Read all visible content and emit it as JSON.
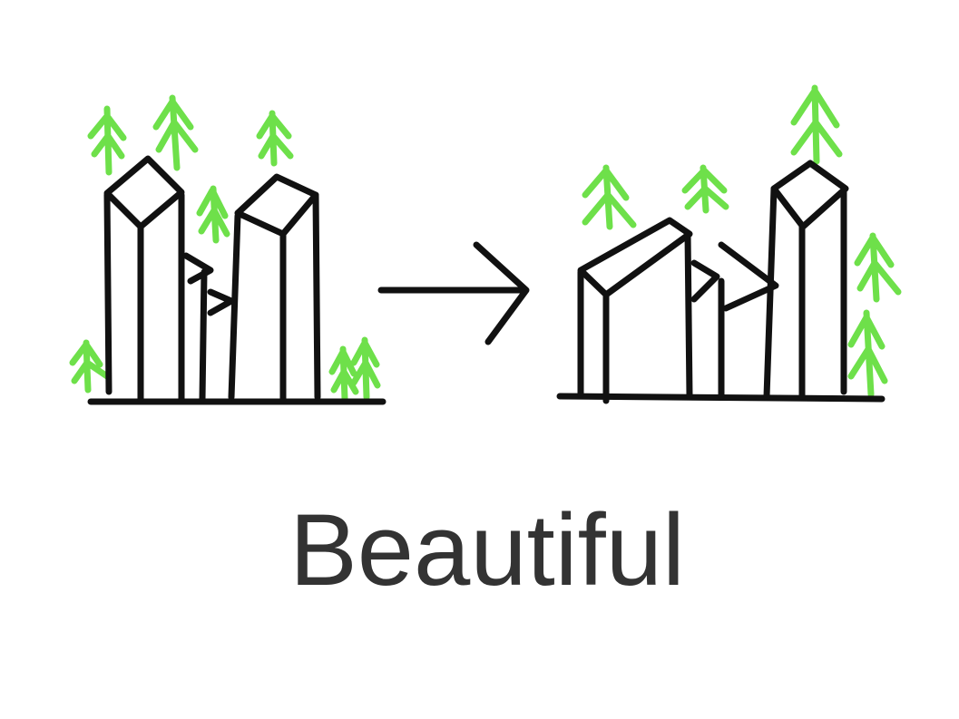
{
  "caption": "Beautiful"
}
